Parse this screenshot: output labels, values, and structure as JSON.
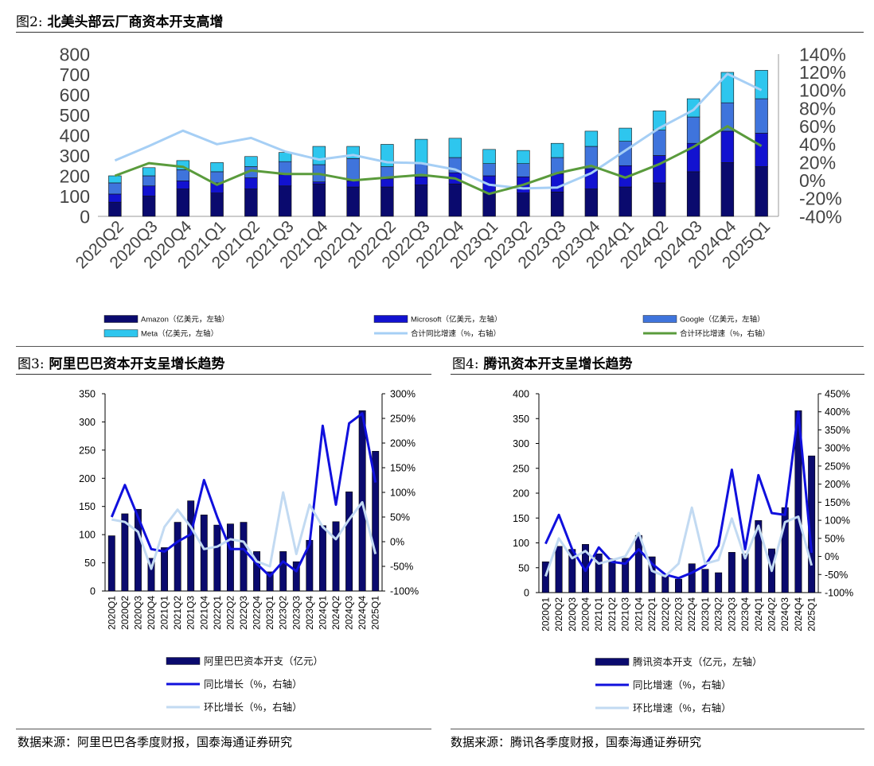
{
  "fig2": {
    "title_num": "图2:",
    "title_text": "北美头部云厂商资本开支高增",
    "legend": [
      {
        "label": "Amazon（亿美元，左轴）",
        "color": "#0a0a6e",
        "kind": "bar"
      },
      {
        "label": "Microsoft（亿美元，左轴）",
        "color": "#1212d0",
        "kind": "bar"
      },
      {
        "label": "Google（亿美元，左轴）",
        "color": "#3f74dc",
        "kind": "bar"
      },
      {
        "label": "Meta（亿美元，左轴）",
        "color": "#2ec6ee",
        "kind": "bar"
      },
      {
        "label": "合计同比增速（%，右轴）",
        "color": "#a6cff5",
        "kind": "line"
      },
      {
        "label": "合计环比增速（%，右轴）",
        "color": "#5a9b3c",
        "kind": "line"
      }
    ]
  },
  "fig3": {
    "title_num": "图3:",
    "title_text": "阿里巴巴资本开支呈增长趋势",
    "legend": [
      {
        "label": "阿里巴巴资本开支（亿元）",
        "color": "#0a0a6e",
        "kind": "bar"
      },
      {
        "label": "同比增长（%，右轴）",
        "color": "#1010dd",
        "kind": "line"
      },
      {
        "label": "环比增长（%，右轴）",
        "color": "#c2daf2",
        "kind": "line"
      }
    ],
    "source": "数据来源：阿里巴巴各季度财报，国泰海通证券研究"
  },
  "fig4": {
    "title_num": "图4:",
    "title_text": "腾讯资本开支呈增长趋势",
    "legend": [
      {
        "label": "腾讯资本开支（亿元，左轴）",
        "color": "#0a0a6e",
        "kind": "bar"
      },
      {
        "label": "同比增速（%，右轴）",
        "color": "#1010dd",
        "kind": "line"
      },
      {
        "label": "环比增速（%，右轴）",
        "color": "#c2daf2",
        "kind": "line"
      }
    ],
    "source": "数据来源：腾讯各季度财报，国泰海通证券研究"
  },
  "chart_data": [
    {
      "type": "bar",
      "stacked": true,
      "categories": [
        "2020Q2",
        "2020Q3",
        "2020Q4",
        "2021Q1",
        "2021Q2",
        "2021Q3",
        "2021Q4",
        "2022Q1",
        "2022Q2",
        "2022Q3",
        "2022Q4",
        "2023Q1",
        "2023Q2",
        "2023Q3",
        "2023Q4",
        "2024Q1",
        "2024Q2",
        "2024Q3",
        "2024Q4",
        "2025Q1"
      ],
      "ylim": [
        0,
        800
      ],
      "yticks": [
        0,
        100,
        200,
        300,
        400,
        500,
        600,
        700,
        800
      ],
      "y2lim": [
        -40,
        140
      ],
      "y2ticks": [
        -40,
        -20,
        0,
        20,
        40,
        60,
        80,
        100,
        120,
        140
      ],
      "y2_unit": "%",
      "series": [
        {
          "name": "Amazon（亿美元，左轴）",
          "values": [
            70,
            100,
            135,
            115,
            135,
            150,
            160,
            145,
            145,
            155,
            160,
            115,
            115,
            120,
            135,
            145,
            165,
            220,
            265,
            245
          ]
        },
        {
          "name": "Microsoft（亿美元，左轴）",
          "values": [
            40,
            50,
            40,
            50,
            55,
            55,
            10,
            30,
            40,
            40,
            55,
            85,
            80,
            90,
            100,
            105,
            135,
            140,
            155,
            165
          ]
        },
        {
          "name": "Google（亿美元，左轴）",
          "values": [
            55,
            50,
            55,
            55,
            55,
            65,
            85,
            110,
            60,
            65,
            75,
            60,
            65,
            80,
            110,
            120,
            125,
            130,
            140,
            170
          ]
        },
        {
          "name": "Meta（亿美元，左轴）",
          "values": [
            35,
            40,
            45,
            45,
            50,
            45,
            90,
            60,
            110,
            120,
            95,
            70,
            65,
            70,
            75,
            65,
            95,
            90,
            150,
            140
          ]
        },
        {
          "name": "合计同比增速（%，右轴）",
          "axis": "right",
          "values": [
            22,
            38,
            55,
            40,
            47,
            32,
            23,
            28,
            20,
            19,
            12,
            -5,
            -9,
            -8,
            8,
            33,
            58,
            78,
            118,
            100
          ]
        },
        {
          "name": "合计环比增速（%，右轴）",
          "axis": "right",
          "values": [
            5,
            19,
            15,
            -5,
            11,
            7,
            7,
            0,
            3,
            6,
            2,
            -15,
            -5,
            8,
            16,
            3,
            18,
            37,
            60,
            38
          ]
        }
      ]
    },
    {
      "type": "bar",
      "categories": [
        "2020Q1",
        "2020Q2",
        "2020Q3",
        "2020Q4",
        "2021Q1",
        "2021Q2",
        "2021Q3",
        "2021Q4",
        "2022Q1",
        "2022Q2",
        "2022Q3",
        "2022Q4",
        "2023Q1",
        "2023Q2",
        "2023Q3",
        "2023Q4",
        "2024Q1",
        "2024Q2",
        "2024Q3",
        "2024Q4",
        "2025Q1"
      ],
      "ylim": [
        0,
        350
      ],
      "yticks": [
        0,
        50,
        100,
        150,
        200,
        250,
        300,
        350
      ],
      "y2lim": [
        -100,
        300
      ],
      "y2ticks": [
        -100,
        -50,
        0,
        50,
        100,
        150,
        200,
        250,
        300
      ],
      "y2_unit": "%",
      "series": [
        {
          "name": "阿里巴巴资本开支（亿元）",
          "values": [
            98,
            137,
            145,
            58,
            77,
            122,
            160,
            135,
            117,
            119,
            122,
            70,
            34,
            70,
            52,
            90,
            116,
            123,
            176,
            320,
            248
          ]
        },
        {
          "name": "同比增长（%，右轴）",
          "axis": "right",
          "values": [
            50,
            115,
            50,
            -15,
            -20,
            0,
            15,
            125,
            50,
            -15,
            -15,
            -45,
            -70,
            -40,
            -60,
            -5,
            235,
            75,
            240,
            260,
            120
          ]
        },
        {
          "name": "环比增长（%，右轴）",
          "axis": "right",
          "values": [
            45,
            40,
            20,
            -55,
            30,
            65,
            30,
            -15,
            -10,
            5,
            0,
            -40,
            -50,
            100,
            -25,
            75,
            30,
            5,
            45,
            80,
            -25
          ]
        }
      ]
    },
    {
      "type": "bar",
      "categories": [
        "2020Q1",
        "2020Q2",
        "2020Q3",
        "2020Q4",
        "2021Q1",
        "2021Q2",
        "2021Q3",
        "2021Q4",
        "2022Q1",
        "2022Q2",
        "2022Q3",
        "2022Q4",
        "2023Q1",
        "2023Q2",
        "2023Q3",
        "2023Q4",
        "2024Q1",
        "2024Q2",
        "2024Q3",
        "2024Q4",
        "2025Q1"
      ],
      "ylim": [
        0,
        400
      ],
      "yticks": [
        0,
        50,
        100,
        150,
        200,
        250,
        300,
        350,
        400
      ],
      "y2lim": [
        -100,
        450
      ],
      "y2ticks": [
        -100,
        -50,
        0,
        50,
        100,
        150,
        200,
        250,
        300,
        350,
        400,
        450
      ],
      "y2_unit": "%",
      "series": [
        {
          "name": "腾讯资本开支（亿元，左轴）",
          "values": [
            62,
            93,
            87,
            97,
            78,
            68,
            69,
            115,
            72,
            33,
            27,
            58,
            47,
            40,
            81,
            78,
            145,
            88,
            171,
            366,
            275
          ]
        },
        {
          "name": "同比增速（%，右轴）",
          "axis": "right",
          "values": [
            35,
            115,
            20,
            -40,
            25,
            -15,
            -20,
            20,
            -20,
            -50,
            -60,
            -45,
            -25,
            30,
            240,
            20,
            225,
            120,
            115,
            400,
            10
          ]
        },
        {
          "name": "环比增速（%，右轴）",
          "axis": "right",
          "values": [
            -55,
            50,
            -5,
            15,
            -20,
            -10,
            0,
            65,
            -40,
            -55,
            -20,
            135,
            -20,
            -10,
            105,
            -5,
            85,
            -40,
            95,
            110,
            -25
          ]
        }
      ]
    }
  ]
}
